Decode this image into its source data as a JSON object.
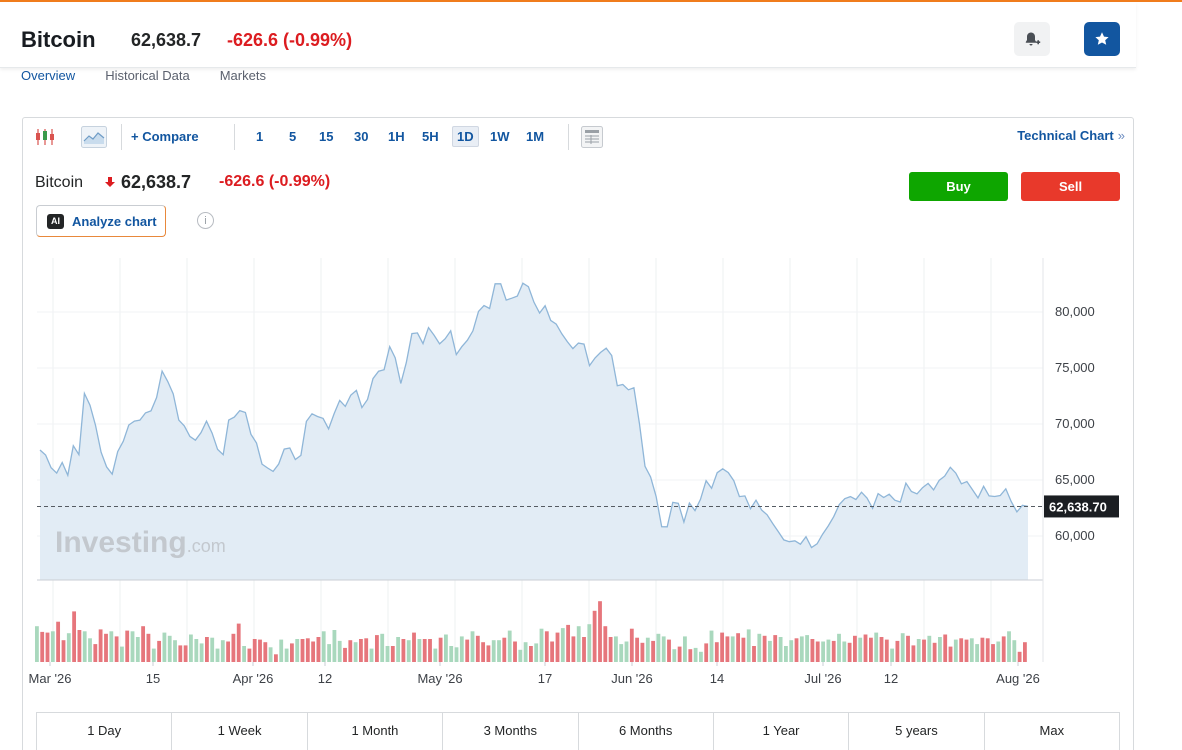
{
  "header": {
    "name": "Bitcoin",
    "price": "62,638.7",
    "change": "-626.6 (-0.99%)",
    "icons": {
      "alert": "bell-plus-icon",
      "watchlist": "star-icon"
    }
  },
  "tabs": [
    "Overview",
    "Historical Data",
    "Markets"
  ],
  "toolbar": {
    "compare_label": "+ Compare",
    "timeframes": [
      "1",
      "5",
      "15",
      "30",
      "1H",
      "5H",
      "1D",
      "1W",
      "1M"
    ],
    "selected_timeframe": "1D",
    "technical_chart_label": "Technical Chart",
    "technical_chart_arrow": "»"
  },
  "quote": {
    "name": "Bitcoin",
    "price": "62,638.7",
    "change": "-626.6",
    "change_pct": "(-0.99%)",
    "buy_label": "Buy",
    "sell_label": "Sell",
    "analyze_label": "Analyze chart",
    "ai_badge": "AI",
    "info_glyph": "i"
  },
  "watermark": {
    "main": "Investing",
    "suffix": ".com"
  },
  "colors": {
    "up": "#0ea600",
    "down": "#dc1c20",
    "accent": "#1256a0",
    "line": "#8fb6d8",
    "area": "#e2ecf5",
    "vol_up": "#a9d8bd",
    "vol_down": "#e6767c"
  },
  "chart_data": {
    "type": "area",
    "y_ticks": [
      60000,
      65000,
      70000,
      75000,
      80000
    ],
    "y_tick_labels": [
      "60,000",
      "65,000",
      "70,000",
      "75,000",
      "80,000"
    ],
    "current_value": 62638.7,
    "current_label": "62,638.70",
    "x_tick_labels": [
      "Mar '26",
      "15",
      "Apr '26",
      "12",
      "May '26",
      "17",
      "Jun '26",
      "14",
      "Jul '26",
      "12",
      "Aug '26"
    ],
    "price_series": [
      67680,
      67230,
      66100,
      65620,
      66560,
      65420,
      68060,
      67270,
      72730,
      71680,
      69880,
      67480,
      66170,
      65520,
      67540,
      68460,
      69910,
      70260,
      70340,
      70990,
      71170,
      72370,
      74720,
      73800,
      72700,
      70350,
      69830,
      68890,
      68550,
      69220,
      70250,
      69190,
      67730,
      67260,
      70350,
      70620,
      71200,
      71030,
      69090,
      68300,
      66420,
      66070,
      65770,
      66430,
      67760,
      67860,
      66830,
      67200,
      70230,
      70910,
      70670,
      70500,
      69560,
      70940,
      72110,
      71570,
      72580,
      73000,
      71460,
      72190,
      74050,
      74710,
      74850,
      76910,
      75900,
      73620,
      75480,
      78070,
      78130,
      77180,
      78610,
      77920,
      77150,
      77620,
      78320,
      76200,
      76900,
      77480,
      78310,
      80050,
      80580,
      80310,
      82520,
      82520,
      81060,
      81230,
      81420,
      82570,
      82260,
      80870,
      79910,
      80560,
      79250,
      78920,
      78050,
      77360,
      76730,
      77220,
      77130,
      75210,
      75900,
      76390,
      76770,
      76120,
      73420,
      73530,
      73050,
      73230,
      70000,
      66220,
      65270,
      63540,
      60830,
      60820,
      63000,
      62920,
      61240,
      62940,
      62270,
      63280,
      64940,
      64260,
      65650,
      66000,
      65660,
      64940,
      63520,
      63580,
      62440,
      63200,
      62320,
      61890,
      61120,
      60400,
      59650,
      59490,
      59570,
      59270,
      59940,
      58970,
      59300,
      60160,
      60890,
      61720,
      62810,
      63330,
      63520,
      63260,
      63910,
      63390,
      62470,
      63790,
      63440,
      63730,
      63200,
      63040,
      64710,
      63970,
      63760,
      64310,
      64700,
      64120,
      64970,
      65350,
      66130,
      65620,
      64660,
      64870,
      64130,
      63400,
      64440,
      63580,
      63530,
      63620,
      64210,
      63060,
      62150,
      62740,
      62640
    ],
    "volume_series": [
      0.56,
      0.47,
      0.46,
      0.48,
      0.63,
      0.34,
      0.45,
      0.79,
      0.5,
      0.48,
      0.37,
      0.28,
      0.51,
      0.44,
      0.48,
      0.4,
      0.24,
      0.49,
      0.48,
      0.39,
      0.56,
      0.44,
      0.21,
      0.33,
      0.46,
      0.41,
      0.34,
      0.26,
      0.26,
      0.43,
      0.36,
      0.29,
      0.39,
      0.38,
      0.21,
      0.34,
      0.32,
      0.44,
      0.6,
      0.25,
      0.21,
      0.36,
      0.35,
      0.31,
      0.23,
      0.12,
      0.35,
      0.21,
      0.29,
      0.36,
      0.36,
      0.37,
      0.32,
      0.39,
      0.48,
      0.28,
      0.5,
      0.33,
      0.22,
      0.34,
      0.31,
      0.36,
      0.37,
      0.21,
      0.42,
      0.44,
      0.25,
      0.25,
      0.39,
      0.36,
      0.34,
      0.46,
      0.36,
      0.36,
      0.36,
      0.21,
      0.38,
      0.43,
      0.25,
      0.23,
      0.4,
      0.35,
      0.48,
      0.41,
      0.31,
      0.26,
      0.34,
      0.34,
      0.38,
      0.49,
      0.32,
      0.19,
      0.31,
      0.25,
      0.29,
      0.52,
      0.48,
      0.32,
      0.46,
      0.53,
      0.58,
      0.4,
      0.56,
      0.39,
      0.59,
      0.8,
      0.95,
      0.56,
      0.39,
      0.4,
      0.28,
      0.32,
      0.52,
      0.38,
      0.3,
      0.38,
      0.33,
      0.44,
      0.4,
      0.35,
      0.2,
      0.24,
      0.4,
      0.2,
      0.22,
      0.16,
      0.29,
      0.49,
      0.31,
      0.46,
      0.4,
      0.4,
      0.45,
      0.38,
      0.51,
      0.25,
      0.44,
      0.41,
      0.33,
      0.42,
      0.39,
      0.25,
      0.34,
      0.37,
      0.4,
      0.42,
      0.36,
      0.32,
      0.32,
      0.35,
      0.33,
      0.44,
      0.32,
      0.3,
      0.41,
      0.38,
      0.43,
      0.38,
      0.46,
      0.39,
      0.35,
      0.21,
      0.33,
      0.45,
      0.41,
      0.26,
      0.36,
      0.35,
      0.41,
      0.3,
      0.39,
      0.43,
      0.24,
      0.35,
      0.37,
      0.35,
      0.37,
      0.28,
      0.38,
      0.37,
      0.28,
      0.32,
      0.4,
      0.48,
      0.34,
      0.16,
      0.31
    ],
    "volume_up": [
      1,
      0,
      0,
      1,
      0,
      0,
      1,
      0,
      0,
      1,
      1,
      0,
      0,
      0,
      1,
      0,
      1,
      0,
      1,
      1,
      0,
      0,
      1,
      0,
      1,
      1,
      1,
      0,
      0,
      1,
      1,
      1,
      0,
      1,
      1,
      1,
      0,
      0,
      0,
      1,
      0,
      0,
      0,
      0,
      1,
      0,
      1,
      1,
      0,
      1,
      0,
      0,
      0,
      0,
      1,
      1,
      1,
      1,
      0,
      0,
      1,
      0,
      0,
      1,
      0,
      1,
      1,
      0,
      1,
      0,
      1,
      0,
      1,
      0,
      0,
      1,
      0,
      1,
      1,
      1,
      1,
      0,
      1,
      0,
      0,
      0,
      1,
      1,
      0,
      1,
      0,
      1,
      1,
      0,
      1,
      1,
      0,
      0,
      0,
      1,
      0,
      0,
      1,
      0,
      1,
      0,
      0,
      0,
      0,
      1,
      1,
      1,
      0,
      0,
      0,
      1,
      0,
      1,
      1,
      0,
      1,
      0,
      1,
      0,
      1,
      1,
      0,
      1,
      0,
      0,
      0,
      1,
      0,
      0,
      1,
      0,
      1,
      0,
      1,
      0,
      1,
      1,
      1,
      0,
      1,
      1,
      0,
      0,
      1,
      1,
      0,
      1,
      1,
      0,
      0,
      1,
      0,
      0,
      1,
      0,
      0,
      1,
      0,
      1,
      0,
      0,
      1,
      0,
      1,
      0,
      1,
      0,
      0,
      1,
      0,
      0,
      1,
      1,
      0,
      0,
      0,
      1,
      0,
      1,
      1
    ],
    "grid": true,
    "legend": "none"
  },
  "periods": [
    "1 Day",
    "1 Week",
    "1 Month",
    "3 Months",
    "6 Months",
    "1 Year",
    "5 years",
    "Max"
  ]
}
